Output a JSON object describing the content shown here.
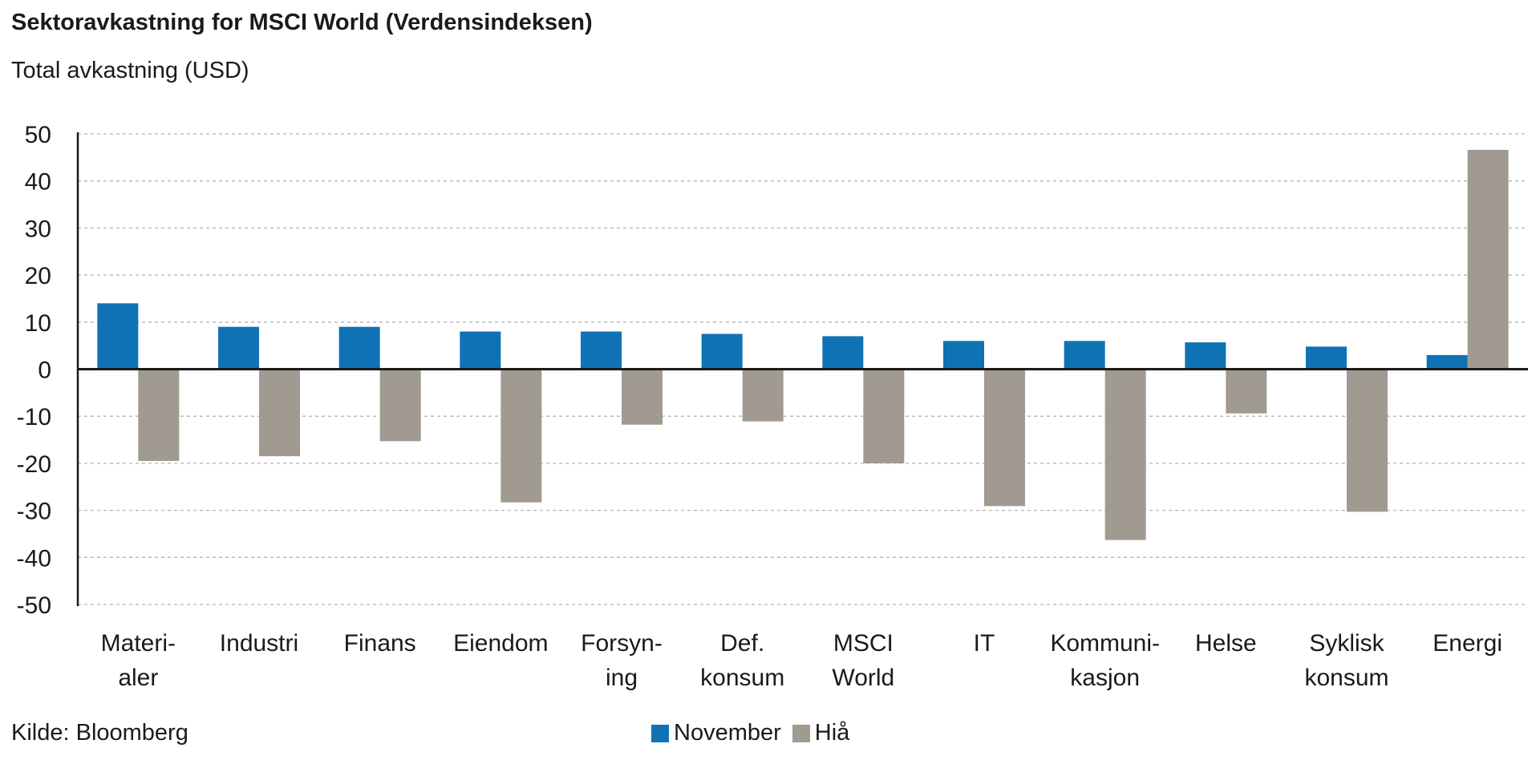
{
  "chart_data": {
    "type": "bar",
    "title": "Sektoravkastning for MSCI World (Verdensindeksen)",
    "subtitle": "Total avkastning (USD)",
    "source": "Kilde: Bloomberg",
    "categories": [
      [
        "Materi-",
        "aler"
      ],
      [
        "Industri"
      ],
      [
        "Finans"
      ],
      [
        "Eiendom"
      ],
      [
        "Forsyn-",
        "ing"
      ],
      [
        "Def.",
        "konsum"
      ],
      [
        "MSCI",
        "World"
      ],
      [
        "IT"
      ],
      [
        "Kommuni-",
        "kasjon"
      ],
      [
        "Helse"
      ],
      [
        "Syklisk",
        "konsum"
      ],
      [
        "Energi"
      ]
    ],
    "series": [
      {
        "name": "November",
        "color": "#0f72b4",
        "values": [
          14,
          9,
          9,
          8,
          8,
          7.5,
          7,
          6,
          6,
          5.7,
          4.8,
          3
        ]
      },
      {
        "name": "Hiå",
        "color": "#a19a91",
        "values": [
          -19.5,
          -18.5,
          -15.3,
          -28.3,
          -11.8,
          -11.1,
          -20,
          -29.1,
          -36.3,
          -9.4,
          -30.3,
          46.6
        ]
      }
    ],
    "ylim": [
      -50,
      50
    ],
    "yticks": [
      50,
      40,
      30,
      20,
      10,
      0,
      -10,
      -20,
      -30,
      -40,
      -50
    ],
    "grid": true,
    "legend": "bottom-center"
  }
}
